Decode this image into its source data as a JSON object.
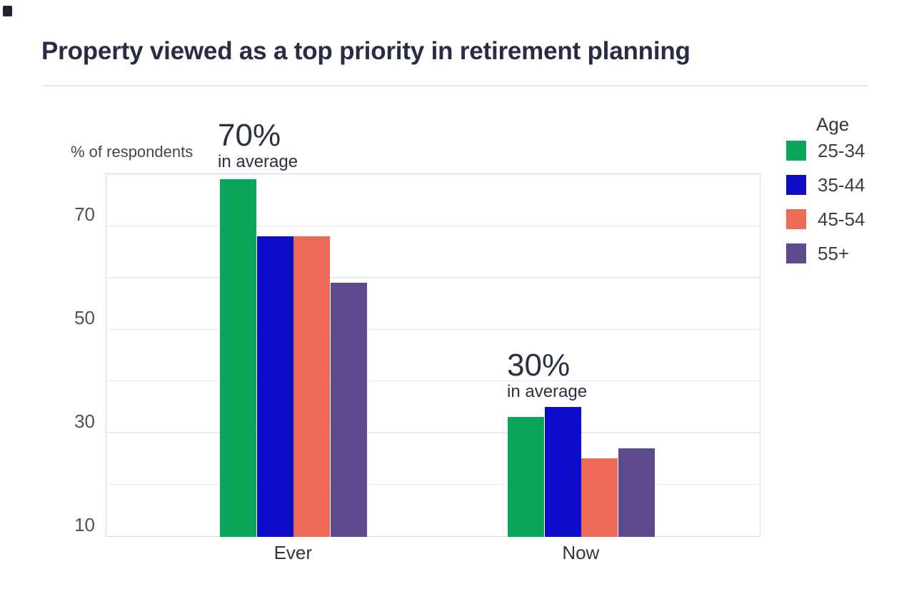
{
  "chart_data": {
    "type": "bar",
    "title": "Property viewed as a top priority in retirement planning",
    "ylabel": "% of respondents",
    "categories": [
      "Ever",
      "Now"
    ],
    "legend_title": "Age",
    "legend_position": "top-right",
    "series": [
      {
        "name": "25-34",
        "color": "#0aa65c",
        "values": [
          79,
          33
        ]
      },
      {
        "name": "35-44",
        "color": "#0d0cc9",
        "values": [
          68,
          35
        ]
      },
      {
        "name": "45-54",
        "color": "#ec6a57",
        "values": [
          68,
          25
        ]
      },
      {
        "name": "55+",
        "color": "#5d4a8c",
        "values": [
          59,
          27
        ]
      }
    ],
    "annotations": [
      {
        "category": "Ever",
        "text": "70%",
        "subtext": "in average"
      },
      {
        "category": "Now",
        "text": "30%",
        "subtext": "in average"
      }
    ],
    "y_axis": {
      "min": 10,
      "max": 80,
      "tick_labels": [
        70,
        50,
        30,
        10
      ],
      "grid_step": 10
    },
    "grid": true
  }
}
